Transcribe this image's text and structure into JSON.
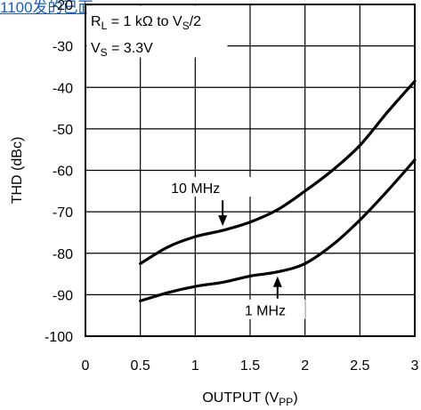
{
  "overlay_text": "1100发的已面",
  "chart_data": {
    "type": "line",
    "xlabel": "OUTPUT (V",
    "xlabel_sub": "PP",
    "xlabel_close": ")",
    "ylabel": "THD (dBc)",
    "xlim": [
      0,
      3
    ],
    "ylim": [
      -100,
      -20
    ],
    "x_ticks": [
      "0",
      "0.5",
      "1",
      "1.5",
      "2",
      "2.5",
      "3"
    ],
    "y_ticks": [
      "-100",
      "-90",
      "-80",
      "-70",
      "-60",
      "-50",
      "-40",
      "-30",
      "-20"
    ],
    "grid": true,
    "conditions": [
      {
        "main": "R",
        "sub": "L",
        "rest": " = 1 kΩ to V",
        "sub2": "S",
        "end": "/2"
      },
      {
        "main": "V",
        "sub": "S",
        "rest": " = 3.3V",
        "sub2": "",
        "end": ""
      }
    ],
    "series": [
      {
        "name": "10 MHz",
        "x": [
          0.5,
          0.75,
          1.0,
          1.25,
          1.5,
          1.75,
          2.0,
          2.25,
          2.5,
          2.75,
          3.0
        ],
        "y": [
          -82.5,
          -78.5,
          -76,
          -74.5,
          -72.5,
          -69.5,
          -65,
          -60,
          -54,
          -46,
          -38.5
        ]
      },
      {
        "name": "1 MHz",
        "x": [
          0.5,
          0.75,
          1.0,
          1.25,
          1.5,
          1.75,
          2.0,
          2.25,
          2.5,
          2.75,
          3.0
        ],
        "y": [
          -91.5,
          -89.5,
          -88,
          -87,
          -85.5,
          -84.5,
          -82.5,
          -78,
          -72,
          -65,
          -57.5
        ]
      }
    ],
    "annotations": [
      {
        "series": "10 MHz",
        "label": "10 MHz",
        "arrow_x": 1.25,
        "arrow_y": -74.5
      },
      {
        "series": "1 MHz",
        "label": "1 MHz",
        "arrow_x": 1.75,
        "arrow_y": -84.5
      }
    ]
  }
}
